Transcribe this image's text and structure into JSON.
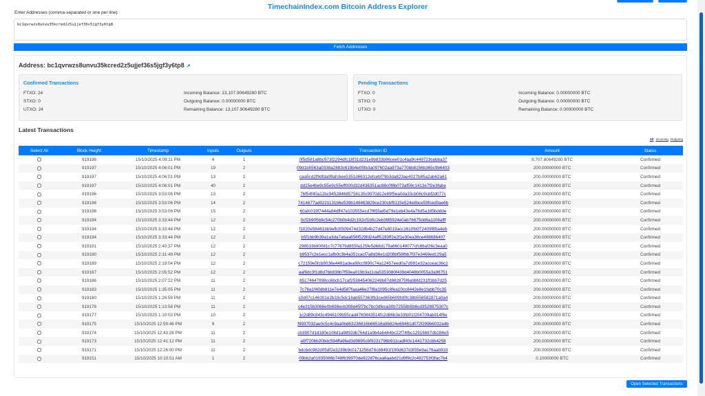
{
  "title": "TimechainIndex.com Bitcoin Address Explorer",
  "input": {
    "label": "Enter Addresses (comma-separated or one per line):",
    "value": "bc1qvrwzs8unvu35kcred2z5ujjef36s5jgf3y6tp8"
  },
  "fetch_label": "Fetch Addresses",
  "address": {
    "label": "Address: bc1qvrwzs8unvu35kcred2z5ujjef36s5jgf3y6tp8",
    "link_icon": "external-link-icon"
  },
  "confirmed": {
    "title": "Confirmed Transactions",
    "ftxo": "FTXO: 24",
    "stxo": "STXO: 0",
    "utxo": "UTXO: 24",
    "incoming": "Incoming Balance: 13,107.90649280 BTC",
    "outgoing": "Outgoing Balance: 0.00000000 BTC",
    "remaining": "Remaining Balance: 13,107.90649280 BTC"
  },
  "pending": {
    "title": "Pending Transactions",
    "ftxo": "FTXO: 0",
    "stxo": "STXO: 0",
    "utxo": "UTXO: 0",
    "incoming": "Incoming Balance: 0.00000000 BTC",
    "outgoing": "Outgoing Balance: 0.00000000 BTC",
    "remaining": "Remaining Balance: 0.00000000 BTC"
  },
  "latest_title": "Latest Transactions",
  "filters": [
    "All",
    "Incoming",
    "Outgoing"
  ],
  "table": {
    "headers": [
      "Select All",
      "Block Height",
      "Timestamp",
      "Inputs",
      "Outputs",
      "Transaction ID",
      "Amount",
      "Status"
    ],
    "rows": [
      [
        "919198",
        "15/10/2025 4:09:11 PM",
        "4",
        "1",
        "0f5d581a8bc973f2294dfc18f31d231e9b833b96cee01c4aa9c449723cebba37",
        "8,707.80649280 BTC",
        "Confirmed"
      ],
      [
        "919197",
        "15/10/2025 4:06:01 PM",
        "19",
        "2",
        "09d1b5563a0338a2883c619b4e05fe3a097602aa973a770bb8156b365c9b6403",
        "200.00000000 BTC",
        "Confirmed"
      ],
      [
        "919197",
        "15/10/2025 4:06:01 PM",
        "13",
        "2",
        "caa5cd2f9dfda99afcbee5351d66312efcebf79b3da823ae4027b85a2ab62a61",
        "200.00000000 BTC",
        "Confirmed"
      ],
      [
        "919197",
        "15/10/2025 4:06:01 PM",
        "40",
        "2",
        "dd15e4be9c55e9c55eff000d32d436351ac88c0f8b073af59c1413e7f2e3fabe",
        "200.00000000 BTC",
        "Confirmed"
      ],
      [
        "919196",
        "15/10/2025 3:53:06 PM",
        "13",
        "2",
        "7bf54f40a12bc945284685756135c9970d12e89f5ea0da33cb06c9cbf2d077c",
        "200.00000000 BTC",
        "Confirmed"
      ],
      [
        "919196",
        "15/10/2025 3:53:06 PM",
        "14",
        "2",
        "7414677ad9221131b6e539b148463829ce230cbf9115e524e8bce59fced0ae6b",
        "200.00000000 BTC",
        "Confirmed"
      ],
      [
        "919196",
        "15/10/2025 3:53:06 PM",
        "15",
        "2",
        "60afc019f7444a84dff47e103555ecd7f65fad5d79e1eb43e4a76d5a185bddde",
        "200.00000000 BTC",
        "Confirmed"
      ],
      [
        "919194",
        "15/10/2025 3:33:44 PM",
        "12",
        "2",
        "0cf2b905b9c54c270b0b4d2c192cf1b5c2eb3f85924e0ab76675dd6a1108afff",
        "200.00000000 BTC",
        "Confirmed"
      ],
      [
        "919194",
        "15/10/2025 3:33:44 PM",
        "12",
        "2",
        "f1020e56461bb9efb3f309474d328b4b27d47e8019acc1610fd072409f85a4eb",
        "200.00000000 BTC",
        "Confirmed"
      ],
      [
        "919194",
        "15/10/2025 3:33:44 PM",
        "12",
        "2",
        "b5f1bb9b39a1a3da7abaa656f529fd24aff5193ff2e2f1e30ea38ce498686407",
        "200.00000000 BTC",
        "Confirmed"
      ],
      [
        "919191",
        "15/10/2025 2:40:37 PM",
        "12",
        "2",
        "298533b90081c7c77679d855fa125fe5d68d179a660149077cfc86af26c3eaa0",
        "200.00000000 BTC",
        "Confirmed"
      ],
      [
        "919190",
        "15/10/2025 2:31:49 PM",
        "12",
        "2",
        "b9537c2e1ecc1afb0c3b4a351cacf7a8d36e1d208bf56fbb7f37e3469ed129a5",
        "200.00000000 BTC",
        "Confirmed"
      ],
      [
        "919189",
        "15/10/2025 2:19:04 PM",
        "12",
        "2",
        "c72159e5fcb8036e4481adea98ccf890c74a12457eed0a7d991e32acceac36c2",
        "200.00000000 BTC",
        "Confirmed"
      ],
      [
        "919187",
        "15/10/2025 2:05:52 PM",
        "12",
        "2",
        "aaf8dc3f1d8d7bb838b7f59ea019b3a11da5353080f439d4048b0055a3a96751",
        "200.00000000 BTC",
        "Confirmed"
      ],
      [
        "919186",
        "15/10/2025 2:07:22 PM",
        "11",
        "2",
        "85174647898cc6bcb17caf2538454062249b87d882875f6a9bfd231ff1bb7d25",
        "200.00000000 BTC",
        "Confirmed"
      ],
      [
        "919183",
        "15/10/2025 1:35:05 PM",
        "11",
        "2",
        "7c76a1f40db811e7e4d587faaa46e27f8a1095c8fea10cc8442e8e1fabb70c35",
        "200.00000000 BTC",
        "Confirmed"
      ],
      [
        "919180",
        "15/10/2025 1:26:59 PM",
        "11",
        "2",
        "c0d07c146301e2b33c5dc16ab557363fb3ced65b609fd0fc38b558582871a0a4",
        "200.00000000 BTC",
        "Confirmed"
      ],
      [
        "919178",
        "15/10/2025 1:13:58 PM",
        "11",
        "2",
        "c4e315b3066e0b698ecb308d45f7bc7bc0dfeca30b72558b5b6cd3528975307c",
        "200.00000000 BTC",
        "Confirmed"
      ],
      [
        "919177",
        "15/10/2025 1:10:03 PM",
        "10",
        "2",
        "1c2d89c843c4946109b55cad4760843514fc2d86b3e33fd01f204709ab914f6e",
        "200.00000000 BTC",
        "Confirmed"
      ],
      [
        "919175",
        "15/10/2025 12:59:46 PM",
        "9",
        "2",
        "f9937032ae0c5c4c9aa0bd63236816b66518a9b824e69461d072f299b6032a4b",
        "200.00000000 BTC",
        "Confirmed"
      ],
      [
        "919174",
        "15/10/2025 12:43:26 PM",
        "11",
        "2",
        "cb3907d1d180e108d1a9892db764d1a9b4a6444bc22f74fbc12916887db284e5",
        "200.00000000 BTC",
        "Confirmed"
      ],
      [
        "919173",
        "15/10/2025 12:41:12 PM",
        "11",
        "2",
        "a0f720bb20bdc594ffa9fed3d9895cbf9231796b911cadf43c1441732cbb4258",
        "200.00000000 BTC",
        "Confirmed"
      ],
      [
        "919171",
        "15/10/2025 12:26:00 PM",
        "11",
        "2",
        "bdcbdc982d05df2e3239b9c0171256d76c88491f190d637d3f35e9ac76aab933",
        "200.00000000 BTC",
        "Confirmed"
      ],
      [
        "919151",
        "15/10/2025 10:10:51 AM",
        "1",
        "2",
        "09bb2a01935086b748f639970de922876caa6aabd21d9f9c2c492753f3fac7b4",
        "0.10000000 BTC",
        "Confirmed"
      ]
    ]
  },
  "open_selected_label": "Open Selected Transactions",
  "colors": {
    "accent": "#007bff",
    "title": "#1e88e5",
    "link": "#1a0dab"
  }
}
